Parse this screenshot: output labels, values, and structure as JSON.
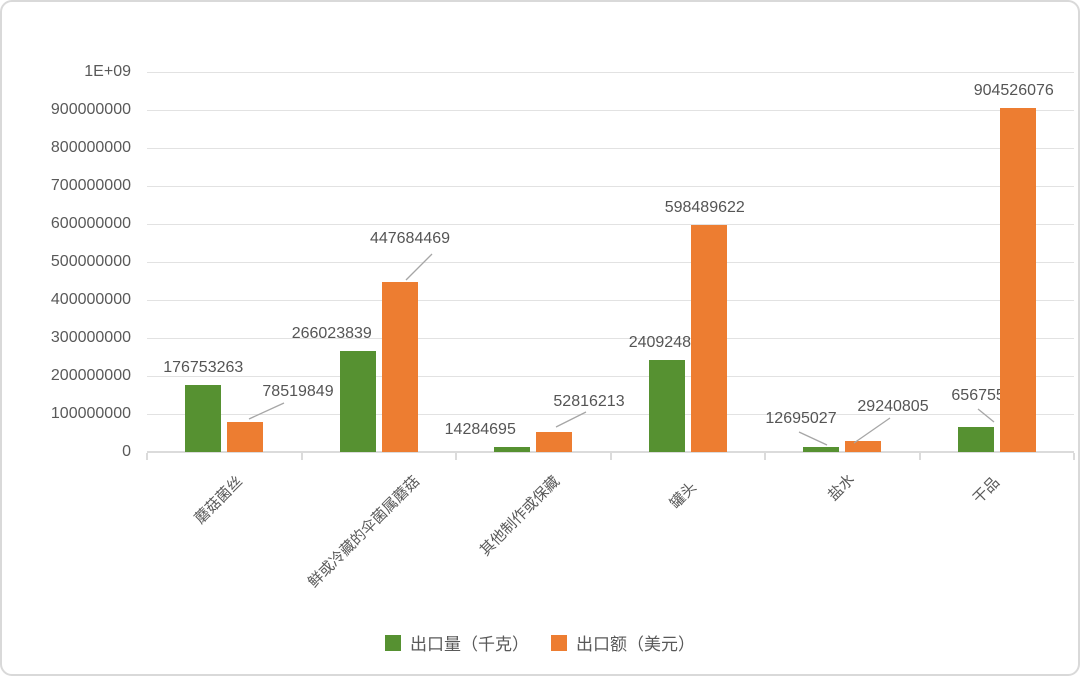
{
  "chart_data": {
    "type": "bar",
    "title": "",
    "xlabel": "",
    "ylabel": "",
    "categories": [
      "蘑菇菌丝",
      "鲜或冷藏的伞菌属蘑菇",
      "其他制作或保藏",
      "罐头",
      "盐水",
      "干品"
    ],
    "series": [
      {
        "name": "出口量（千克）",
        "color": "#569131",
        "values": [
          176753263,
          266023839,
          14284695,
          240924849,
          12695027,
          65675566
        ]
      },
      {
        "name": "出口额（美元）",
        "color": "#ED7D31",
        "values": [
          78519849,
          447684469,
          52816213,
          598489622,
          29240805,
          904526076
        ]
      }
    ],
    "data_labels": [
      [
        "176753263",
        "266023839",
        "14284695",
        "240924849",
        "12695027",
        "65675566"
      ],
      [
        "78519849",
        "447684469",
        "52816213",
        "598489622",
        "29240805",
        "904526076"
      ]
    ],
    "ylim": [
      0,
      1000000000
    ],
    "ytick_step": 100000000,
    "ytick_labels": [
      "0",
      "100000000",
      "200000000",
      "300000000",
      "400000000",
      "500000000",
      "600000000",
      "700000000",
      "800000000",
      "900000000",
      "1E+09"
    ],
    "grid": true,
    "legend_position": "bottom",
    "colors": {
      "series1": "#569131",
      "series2": "#ED7D31",
      "gridline": "#e2e2e2",
      "axis": "#dbdbdb",
      "text": "#595959",
      "leader_line": "#a6a6a6",
      "background": "#ffffff",
      "panel_border": "#d9d9d9"
    }
  }
}
